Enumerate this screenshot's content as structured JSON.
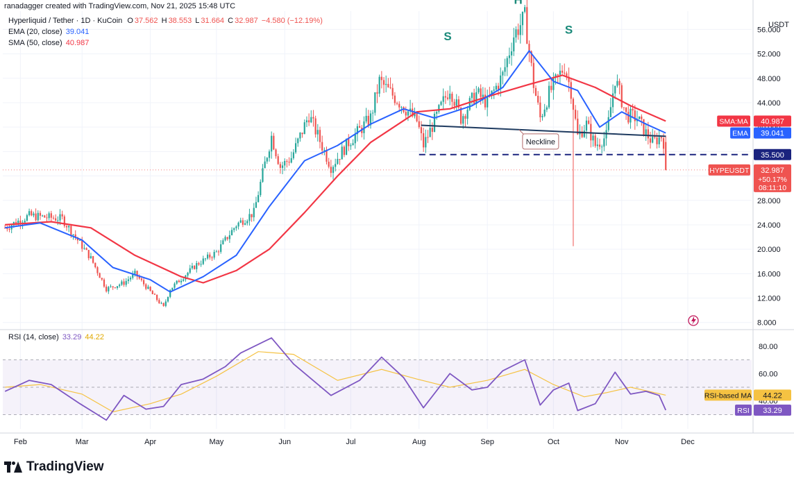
{
  "header": {
    "credit": "ranadagger created with TradingView.com, Nov 21, 2025 15:48 UTC"
  },
  "legend": {
    "symbol": "Hyperliquid / Tether · 1D · KuCoin",
    "ohlc": {
      "O": "37.562",
      "H": "38.553",
      "L": "31.664",
      "C": "32.987",
      "change": "−4.580 (−12.19%)"
    },
    "ema_label": "EMA (20, close)",
    "ema_value": "39.041",
    "sma_label": "SMA (50, close)",
    "sma_value": "40.987",
    "rsi_label": "RSI (14, close)",
    "rsi_value": "33.29",
    "rsi_ma_value": "44.22"
  },
  "quote_currency": "USDT",
  "branding": "TradingView",
  "colors": {
    "up": "#26a69a",
    "down": "#ef5350",
    "ema": "#2962ff",
    "sma": "#f23645",
    "rsi": "#7e57c2",
    "rsi_ma": "#f5c242",
    "neckline": "#1e3a5f",
    "support": "#1a237e"
  },
  "chart_data": [
    {
      "type": "candlestick",
      "title": "Hyperliquid / Tether · 1D · KuCoin",
      "x_ticks": [
        "Feb",
        "Mar",
        "Apr",
        "May",
        "Jun",
        "Jul",
        "Aug",
        "Sep",
        "Oct",
        "Nov",
        "Dec"
      ],
      "x_range": [
        "2025-01-24",
        "2025-12-30"
      ],
      "y_ticks": [
        8.0,
        12.0,
        16.0,
        20.0,
        24.0,
        28.0,
        32.0,
        36.0,
        40.0,
        44.0,
        48.0,
        52.0,
        56.0
      ],
      "ylim": [
        7.4,
        59
      ],
      "y_axis_unit": "USDT",
      "price_anchors": [
        {
          "date": "2025-01-25",
          "price": 23.5
        },
        {
          "date": "2025-02-05",
          "price": 25.5
        },
        {
          "date": "2025-02-20",
          "price": 25.0
        },
        {
          "date": "2025-03-05",
          "price": 18.5
        },
        {
          "date": "2025-03-12",
          "price": 13.5
        },
        {
          "date": "2025-03-20",
          "price": 14.5
        },
        {
          "date": "2025-03-25",
          "price": 16.0
        },
        {
          "date": "2025-04-07",
          "price": 10.5
        },
        {
          "date": "2025-04-10",
          "price": 13.5
        },
        {
          "date": "2025-04-22",
          "price": 17.5
        },
        {
          "date": "2025-05-01",
          "price": 19.5
        },
        {
          "date": "2025-05-10",
          "price": 24.0
        },
        {
          "date": "2025-05-18",
          "price": 26.0
        },
        {
          "date": "2025-05-23",
          "price": 34.0
        },
        {
          "date": "2025-05-26",
          "price": 38.5
        },
        {
          "date": "2025-05-30",
          "price": 33.5
        },
        {
          "date": "2025-06-04",
          "price": 35.0
        },
        {
          "date": "2025-06-12",
          "price": 42.0
        },
        {
          "date": "2025-06-22",
          "price": 33.5
        },
        {
          "date": "2025-06-30",
          "price": 37.5
        },
        {
          "date": "2025-07-10",
          "price": 41.5
        },
        {
          "date": "2025-07-14",
          "price": 47.5
        },
        {
          "date": "2025-07-22",
          "price": 44.5
        },
        {
          "date": "2025-07-31",
          "price": 41.0
        },
        {
          "date": "2025-08-03",
          "price": 37.0
        },
        {
          "date": "2025-08-08",
          "price": 41.0
        },
        {
          "date": "2025-08-15",
          "price": 46.5
        },
        {
          "date": "2025-08-20",
          "price": 41.5
        },
        {
          "date": "2025-08-27",
          "price": 45.5
        },
        {
          "date": "2025-09-01",
          "price": 44.0
        },
        {
          "date": "2025-09-08",
          "price": 48.5
        },
        {
          "date": "2025-09-13",
          "price": 55.0
        },
        {
          "date": "2025-09-18",
          "price": 58.0
        },
        {
          "date": "2025-09-22",
          "price": 47.0
        },
        {
          "date": "2025-09-25",
          "price": 41.5
        },
        {
          "date": "2025-09-29",
          "price": 45.5
        },
        {
          "date": "2025-10-06",
          "price": 50.0
        },
        {
          "date": "2025-10-09",
          "price": 46.0
        },
        {
          "date": "2025-10-12",
          "price": 38.5
        },
        {
          "date": "2025-10-16",
          "price": 40.5
        },
        {
          "date": "2025-10-20",
          "price": 37.0
        },
        {
          "date": "2025-10-25",
          "price": 38.5
        },
        {
          "date": "2025-10-29",
          "price": 48.0
        },
        {
          "date": "2025-11-03",
          "price": 42.0
        },
        {
          "date": "2025-11-08",
          "price": 41.5
        },
        {
          "date": "2025-11-12",
          "price": 39.0
        },
        {
          "date": "2025-11-15",
          "price": 37.5
        },
        {
          "date": "2025-11-19",
          "price": 38.5
        },
        {
          "date": "2025-11-20",
          "price": 37.56
        },
        {
          "date": "2025-11-21",
          "price": 32.99
        }
      ],
      "notable_wick_low": {
        "date": "2025-10-10",
        "price": 20.5
      },
      "ema_20": [
        {
          "date": "2025-01-25",
          "value": 23.5
        },
        {
          "date": "2025-02-10",
          "value": 24.3
        },
        {
          "date": "2025-03-01",
          "value": 21.5
        },
        {
          "date": "2025-03-15",
          "value": 17.0
        },
        {
          "date": "2025-04-01",
          "value": 15.0
        },
        {
          "date": "2025-04-10",
          "value": 13.0
        },
        {
          "date": "2025-04-25",
          "value": 15.5
        },
        {
          "date": "2025-05-10",
          "value": 19.0
        },
        {
          "date": "2025-05-25",
          "value": 27.0
        },
        {
          "date": "2025-06-10",
          "value": 34.5
        },
        {
          "date": "2025-06-25",
          "value": 37.0
        },
        {
          "date": "2025-07-10",
          "value": 40.5
        },
        {
          "date": "2025-07-25",
          "value": 43.0
        },
        {
          "date": "2025-08-08",
          "value": 41.5
        },
        {
          "date": "2025-08-25",
          "value": 43.5
        },
        {
          "date": "2025-09-08",
          "value": 46.5
        },
        {
          "date": "2025-09-20",
          "value": 52.5
        },
        {
          "date": "2025-10-01",
          "value": 47.5
        },
        {
          "date": "2025-10-12",
          "value": 46.0
        },
        {
          "date": "2025-10-22",
          "value": 40.0
        },
        {
          "date": "2025-11-01",
          "value": 42.5
        },
        {
          "date": "2025-11-12",
          "value": 40.5
        },
        {
          "date": "2025-11-21",
          "value": 39.041
        }
      ],
      "sma_50": [
        {
          "date": "2025-01-25",
          "value": 24.0
        },
        {
          "date": "2025-02-15",
          "value": 24.5
        },
        {
          "date": "2025-03-05",
          "value": 23.5
        },
        {
          "date": "2025-03-25",
          "value": 19.0
        },
        {
          "date": "2025-04-15",
          "value": 15.5
        },
        {
          "date": "2025-04-25",
          "value": 14.5
        },
        {
          "date": "2025-05-10",
          "value": 16.5
        },
        {
          "date": "2025-05-25",
          "value": 20.0
        },
        {
          "date": "2025-06-10",
          "value": 26.0
        },
        {
          "date": "2025-06-25",
          "value": 32.0
        },
        {
          "date": "2025-07-10",
          "value": 37.5
        },
        {
          "date": "2025-07-31",
          "value": 42.5
        },
        {
          "date": "2025-08-15",
          "value": 43.0
        },
        {
          "date": "2025-09-01",
          "value": 45.0
        },
        {
          "date": "2025-09-20",
          "value": 47.0
        },
        {
          "date": "2025-10-05",
          "value": 48.5
        },
        {
          "date": "2025-10-20",
          "value": 46.5
        },
        {
          "date": "2025-11-05",
          "value": 43.5
        },
        {
          "date": "2025-11-21",
          "value": 40.987
        }
      ],
      "price_labels": [
        {
          "label": "SMA:MA",
          "value": "40.987"
        },
        {
          "label": "EMA",
          "value": "39.041"
        },
        {
          "label": "",
          "value": "35.500"
        },
        {
          "label": "HYPEUSDT",
          "value": "32.987",
          "change": "+50.17%",
          "countdown": "08:11:10"
        }
      ],
      "annotations": [
        {
          "text": "S",
          "date": "2025-08-14",
          "price": 54.2
        },
        {
          "text": "H",
          "date": "2025-09-15",
          "price": 60.2
        },
        {
          "text": "S",
          "date": "2025-10-08",
          "price": 55.3
        },
        {
          "text": "Neckline",
          "line": [
            {
              "date": "2025-08-02",
              "price": 40.3
            },
            {
              "date": "2025-11-21",
              "price": 38.5
            }
          ]
        },
        {
          "text": "",
          "line": [
            {
              "date": "2025-08-01",
              "price": 35.5
            },
            {
              "date": "2025-12-30",
              "price": 35.5
            }
          ],
          "style": "dashed"
        }
      ]
    },
    {
      "type": "line",
      "title": "RSI (14, close)",
      "y_ticks": [
        40.0,
        60.0,
        80.0
      ],
      "ylim": [
        19.6,
        88
      ],
      "bands": [
        30,
        50,
        70
      ],
      "series": [
        {
          "name": "RSI",
          "points": [
            {
              "date": "2025-01-25",
              "value": 47
            },
            {
              "date": "2025-02-05",
              "value": 55
            },
            {
              "date": "2025-02-15",
              "value": 52
            },
            {
              "date": "2025-02-28",
              "value": 38
            },
            {
              "date": "2025-03-12",
              "value": 26
            },
            {
              "date": "2025-03-20",
              "value": 44
            },
            {
              "date": "2025-03-30",
              "value": 34
            },
            {
              "date": "2025-04-07",
              "value": 36
            },
            {
              "date": "2025-04-15",
              "value": 52
            },
            {
              "date": "2025-04-25",
              "value": 56
            },
            {
              "date": "2025-05-05",
              "value": 65
            },
            {
              "date": "2025-05-12",
              "value": 75
            },
            {
              "date": "2025-05-26",
              "value": 86
            },
            {
              "date": "2025-06-05",
              "value": 67
            },
            {
              "date": "2025-06-22",
              "value": 44
            },
            {
              "date": "2025-07-05",
              "value": 55
            },
            {
              "date": "2025-07-15",
              "value": 72
            },
            {
              "date": "2025-07-25",
              "value": 57
            },
            {
              "date": "2025-08-03",
              "value": 35
            },
            {
              "date": "2025-08-15",
              "value": 60
            },
            {
              "date": "2025-08-25",
              "value": 48
            },
            {
              "date": "2025-09-01",
              "value": 50
            },
            {
              "date": "2025-09-08",
              "value": 62
            },
            {
              "date": "2025-09-18",
              "value": 70
            },
            {
              "date": "2025-09-25",
              "value": 37
            },
            {
              "date": "2025-10-01",
              "value": 48
            },
            {
              "date": "2025-10-08",
              "value": 53
            },
            {
              "date": "2025-10-12",
              "value": 33
            },
            {
              "date": "2025-10-20",
              "value": 38
            },
            {
              "date": "2025-10-29",
              "value": 61
            },
            {
              "date": "2025-11-05",
              "value": 45
            },
            {
              "date": "2025-11-12",
              "value": 47
            },
            {
              "date": "2025-11-18",
              "value": 44
            },
            {
              "date": "2025-11-21",
              "value": 33.29
            }
          ]
        },
        {
          "name": "RSI-based MA",
          "points": [
            {
              "date": "2025-01-25",
              "value": 50
            },
            {
              "date": "2025-02-10",
              "value": 52
            },
            {
              "date": "2025-03-01",
              "value": 45
            },
            {
              "date": "2025-03-15",
              "value": 32
            },
            {
              "date": "2025-04-01",
              "value": 38
            },
            {
              "date": "2025-04-15",
              "value": 45
            },
            {
              "date": "2025-05-01",
              "value": 58
            },
            {
              "date": "2025-05-20",
              "value": 76
            },
            {
              "date": "2025-06-05",
              "value": 74
            },
            {
              "date": "2025-06-25",
              "value": 55
            },
            {
              "date": "2025-07-15",
              "value": 63
            },
            {
              "date": "2025-07-31",
              "value": 56
            },
            {
              "date": "2025-08-15",
              "value": 50
            },
            {
              "date": "2025-09-01",
              "value": 55
            },
            {
              "date": "2025-09-18",
              "value": 63
            },
            {
              "date": "2025-10-01",
              "value": 52
            },
            {
              "date": "2025-10-15",
              "value": 43
            },
            {
              "date": "2025-10-25",
              "value": 46
            },
            {
              "date": "2025-11-05",
              "value": 50
            },
            {
              "date": "2025-11-21",
              "value": 44.22
            }
          ]
        }
      ],
      "price_labels": [
        {
          "label": "RSI-based MA",
          "value": "44.22"
        },
        {
          "label": "RSI",
          "value": "33.29"
        }
      ]
    }
  ]
}
